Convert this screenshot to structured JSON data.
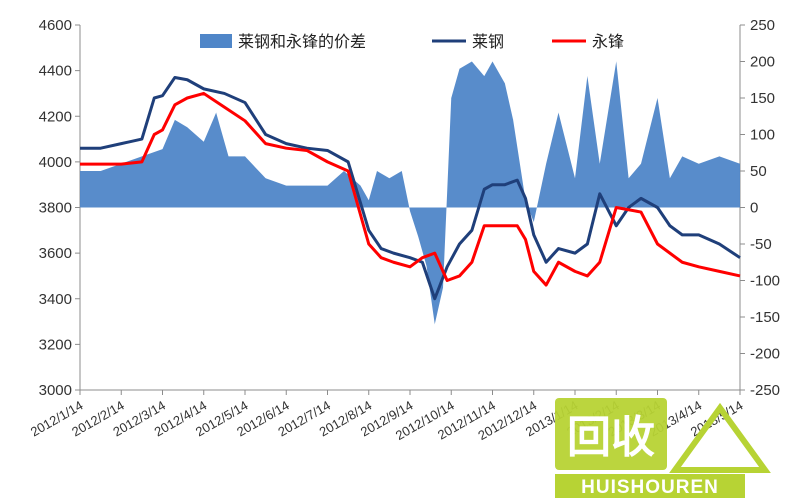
{
  "chart_data": {
    "type": "line",
    "title": "",
    "xlabel": "",
    "ylabel": "",
    "x_categories": [
      "2012/1/14",
      "2012/2/14",
      "2012/3/14",
      "2012/4/14",
      "2012/5/14",
      "2012/6/14",
      "2012/7/14",
      "2012/8/14",
      "2012/9/14",
      "2012/10/14",
      "2012/11/14",
      "2012/12/14",
      "2013/1/14",
      "2013/2/14",
      "2013/3/14",
      "2013/4/14",
      "2013/5/14"
    ],
    "x_index_range": [
      0,
      16
    ],
    "y_left": {
      "min": 3000,
      "max": 4600,
      "step": 200,
      "ticks": [
        "3000",
        "3200",
        "3400",
        "3600",
        "3800",
        "4000",
        "4200",
        "4400",
        "4600"
      ]
    },
    "y_right": {
      "min": -250,
      "max": 250,
      "step": 50,
      "ticks": [
        "-250",
        "-200",
        "-150",
        "-100",
        "-50",
        "0",
        "50",
        "100",
        "150",
        "200",
        "250"
      ]
    },
    "legend": {
      "placement": "top"
    },
    "series": [
      {
        "name": "莱钢和永锋的价差",
        "kind": "area",
        "axis": "right",
        "color": "#4f86c8",
        "x": [
          0,
          0.5,
          1,
          1.5,
          2,
          2.3,
          2.6,
          3,
          3.3,
          3.6,
          4,
          4.5,
          5,
          5.5,
          6,
          6.4,
          6.8,
          7,
          7.2,
          7.5,
          7.8,
          8,
          8.2,
          8.4,
          8.6,
          8.8,
          9,
          9.2,
          9.5,
          9.8,
          10,
          10.3,
          10.5,
          10.8,
          11,
          11.3,
          11.6,
          12,
          12.3,
          12.6,
          13,
          13.3,
          13.6,
          14,
          14.3,
          14.6,
          15,
          15.5,
          16
        ],
        "values": [
          50,
          50,
          60,
          70,
          80,
          120,
          110,
          90,
          130,
          70,
          70,
          40,
          30,
          30,
          30,
          50,
          30,
          10,
          50,
          40,
          50,
          -5,
          -40,
          -80,
          -160,
          -110,
          150,
          190,
          200,
          180,
          200,
          170,
          120,
          10,
          -20,
          60,
          130,
          40,
          180,
          60,
          200,
          40,
          60,
          150,
          40,
          70,
          60,
          70,
          60
        ]
      },
      {
        "name": "莱钢",
        "kind": "line",
        "axis": "left",
        "color": "#1f3f7a",
        "x": [
          0,
          0.5,
          1,
          1.5,
          1.8,
          2,
          2.3,
          2.6,
          3,
          3.5,
          4,
          4.5,
          5,
          5.5,
          6,
          6.5,
          7,
          7.3,
          7.6,
          8,
          8.3,
          8.6,
          8.9,
          9.2,
          9.5,
          9.8,
          10,
          10.3,
          10.6,
          10.8,
          11,
          11.3,
          11.6,
          12,
          12.3,
          12.6,
          13,
          13.3,
          13.6,
          14,
          14.3,
          14.6,
          15,
          15.5,
          16
        ],
        "values": [
          4060,
          4060,
          4080,
          4100,
          4280,
          4290,
          4370,
          4360,
          4320,
          4300,
          4260,
          4120,
          4080,
          4060,
          4050,
          4000,
          3700,
          3620,
          3600,
          3580,
          3560,
          3400,
          3540,
          3640,
          3700,
          3880,
          3900,
          3900,
          3920,
          3840,
          3680,
          3560,
          3620,
          3600,
          3640,
          3860,
          3720,
          3800,
          3840,
          3800,
          3720,
          3680,
          3680,
          3640,
          3580
        ]
      },
      {
        "name": "永锋",
        "kind": "line",
        "axis": "left",
        "color": "#ff0000",
        "x": [
          0,
          0.5,
          1,
          1.5,
          1.8,
          2,
          2.3,
          2.6,
          3,
          3.5,
          4,
          4.5,
          5,
          5.5,
          6,
          6.5,
          7,
          7.3,
          7.6,
          8,
          8.3,
          8.6,
          8.9,
          9.2,
          9.5,
          9.8,
          10,
          10.3,
          10.6,
          10.8,
          11,
          11.3,
          11.6,
          12,
          12.3,
          12.6,
          13,
          13.3,
          13.6,
          14,
          14.3,
          14.6,
          15,
          15.5,
          16
        ],
        "values": [
          3990,
          3990,
          3990,
          4000,
          4120,
          4140,
          4250,
          4280,
          4300,
          4240,
          4180,
          4080,
          4060,
          4050,
          4000,
          3960,
          3640,
          3580,
          3560,
          3540,
          3580,
          3600,
          3480,
          3500,
          3560,
          3720,
          3720,
          3720,
          3720,
          3660,
          3520,
          3460,
          3560,
          3520,
          3500,
          3560,
          3800,
          3790,
          3780,
          3640,
          3600,
          3560,
          3540,
          3520,
          3500
        ]
      }
    ]
  },
  "watermark": {
    "text_big": "回收",
    "text_small": "HUISHOUREN",
    "color": "#b7d334"
  }
}
